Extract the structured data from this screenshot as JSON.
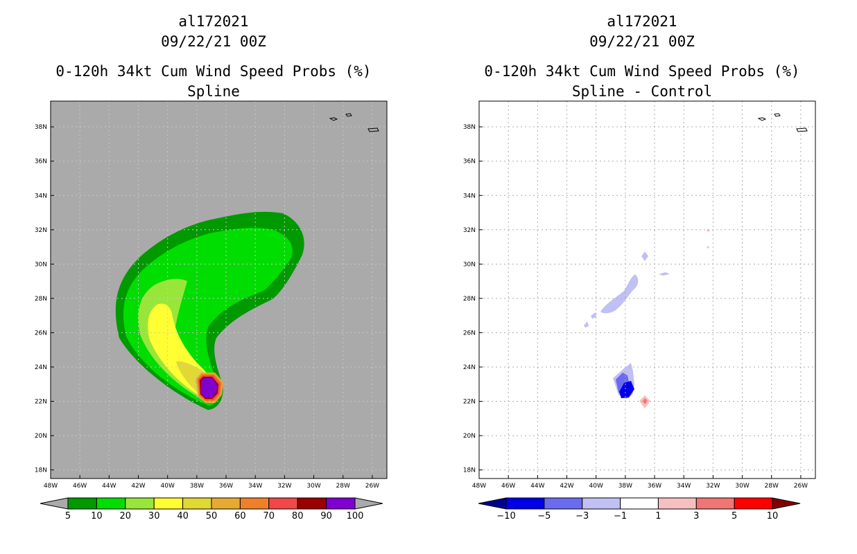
{
  "chart_data": [
    {
      "type": "heatmap",
      "storm_id": "al172021",
      "date": "09/22/21 00Z",
      "title": "0-120h 34kt Cum Wind Speed Probs (%)",
      "subtitle": "Spline",
      "x_ticks": [
        "48W",
        "46W",
        "44W",
        "42W",
        "40W",
        "38W",
        "36W",
        "34W",
        "32W",
        "30W",
        "28W",
        "26W"
      ],
      "y_ticks": [
        "18N",
        "20N",
        "22N",
        "24N",
        "26N",
        "28N",
        "30N",
        "32N",
        "34N",
        "36N",
        "38N"
      ],
      "xlim": [
        -48,
        -25
      ],
      "ylim": [
        17.5,
        39.5
      ],
      "colorbar": {
        "labels": [
          "5",
          "10",
          "20",
          "30",
          "40",
          "50",
          "60",
          "70",
          "80",
          "90",
          "100"
        ],
        "colors": [
          "#009900",
          "#00dd00",
          "#99e63a",
          "#ffff33",
          "#e0d833",
          "#e6aa33",
          "#f07f29",
          "#f04848",
          "#9a0000",
          "#8000d0"
        ],
        "low_color": "#aaaaaa",
        "high_color": "#aaaaaa"
      },
      "background": "#aaaaaa",
      "grid": true
    },
    {
      "type": "heatmap",
      "storm_id": "al172021",
      "date": "09/22/21 00Z",
      "title": "0-120h 34kt Cum Wind Speed Probs (%)",
      "subtitle": "Spline - Control",
      "x_ticks": [
        "48W",
        "46W",
        "44W",
        "42W",
        "40W",
        "38W",
        "36W",
        "34W",
        "32W",
        "30W",
        "28W",
        "26W"
      ],
      "y_ticks": [
        "18N",
        "20N",
        "22N",
        "24N",
        "26N",
        "28N",
        "30N",
        "32N",
        "34N",
        "36N",
        "38N"
      ],
      "xlim": [
        -48,
        -25
      ],
      "ylim": [
        17.5,
        39.5
      ],
      "colorbar": {
        "labels": [
          "-10",
          "-5",
          "-3",
          "-1",
          "1",
          "3",
          "5",
          "10"
        ],
        "colors": [
          "#0000e6",
          "#6b6bf0",
          "#c0c0f5",
          "#ffffff",
          "#f7c0c0",
          "#f07575",
          "#ff0000"
        ],
        "low_color": "#000090",
        "high_color": "#800000"
      },
      "background": "#ffffff",
      "grid": true
    }
  ]
}
